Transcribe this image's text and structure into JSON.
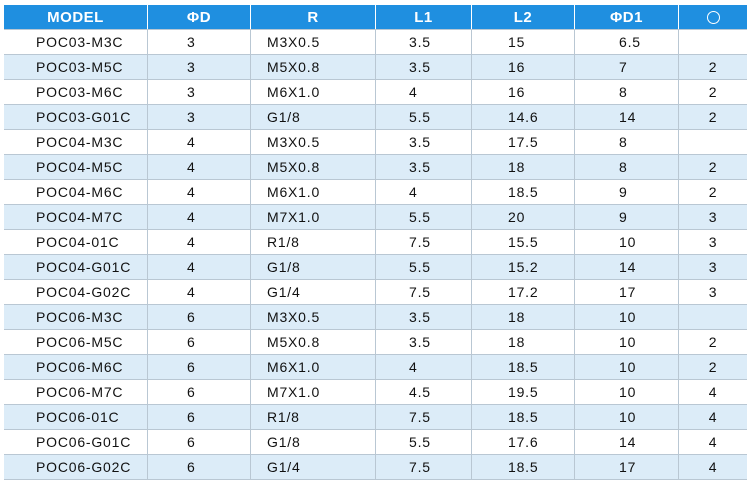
{
  "table": {
    "headers": {
      "model": "MODEL",
      "phi_d": "ΦD",
      "r": "R",
      "l1": "L1",
      "l2": "L2",
      "phi_d1": "ΦD1",
      "o_ring": "circle-icon"
    },
    "colors": {
      "header_bg": "#1f8fe0",
      "alt_row": "#dcecf8",
      "grid": "#b9c7d3"
    },
    "rows": [
      {
        "model": "POC03-M3C",
        "d": "3",
        "r": "M3X0.5",
        "l1": "3.5",
        "l2": "15",
        "d1": "6.5",
        "o": ""
      },
      {
        "model": "POC03-M5C",
        "d": "3",
        "r": "M5X0.8",
        "l1": "3.5",
        "l2": "16",
        "d1": "7",
        "o": "2"
      },
      {
        "model": "POC03-M6C",
        "d": "3",
        "r": "M6X1.0",
        "l1": "4",
        "l2": "16",
        "d1": "8",
        "o": "2"
      },
      {
        "model": "POC03-G01C",
        "d": "3",
        "r": "G1/8",
        "l1": "5.5",
        "l2": "14.6",
        "d1": "14",
        "o": "2"
      },
      {
        "model": "POC04-M3C",
        "d": "4",
        "r": "M3X0.5",
        "l1": "3.5",
        "l2": "17.5",
        "d1": "8",
        "o": ""
      },
      {
        "model": "POC04-M5C",
        "d": "4",
        "r": "M5X0.8",
        "l1": "3.5",
        "l2": "18",
        "d1": "8",
        "o": "2"
      },
      {
        "model": "POC04-M6C",
        "d": "4",
        "r": "M6X1.0",
        "l1": "4",
        "l2": "18.5",
        "d1": "9",
        "o": "2"
      },
      {
        "model": "POC04-M7C",
        "d": "4",
        "r": "M7X1.0",
        "l1": "5.5",
        "l2": "20",
        "d1": "9",
        "o": "3"
      },
      {
        "model": "POC04-01C",
        "d": "4",
        "r": "R1/8",
        "l1": "7.5",
        "l2": "15.5",
        "d1": "10",
        "o": "3"
      },
      {
        "model": "POC04-G01C",
        "d": "4",
        "r": "G1/8",
        "l1": "5.5",
        "l2": "15.2",
        "d1": "14",
        "o": "3"
      },
      {
        "model": "POC04-G02C",
        "d": "4",
        "r": "G1/4",
        "l1": "7.5",
        "l2": "17.2",
        "d1": "17",
        "o": "3"
      },
      {
        "model": "POC06-M3C",
        "d": "6",
        "r": "M3X0.5",
        "l1": "3.5",
        "l2": "18",
        "d1": "10",
        "o": ""
      },
      {
        "model": "POC06-M5C",
        "d": "6",
        "r": "M5X0.8",
        "l1": "3.5",
        "l2": "18",
        "d1": "10",
        "o": "2"
      },
      {
        "model": "POC06-M6C",
        "d": "6",
        "r": "M6X1.0",
        "l1": "4",
        "l2": "18.5",
        "d1": "10",
        "o": "2"
      },
      {
        "model": "POC06-M7C",
        "d": "6",
        "r": "M7X1.0",
        "l1": "4.5",
        "l2": "19.5",
        "d1": "10",
        "o": "4"
      },
      {
        "model": "POC06-01C",
        "d": "6",
        "r": "R1/8",
        "l1": "7.5",
        "l2": "18.5",
        "d1": "10",
        "o": "4"
      },
      {
        "model": "POC06-G01C",
        "d": "6",
        "r": "G1/8",
        "l1": "5.5",
        "l2": "17.6",
        "d1": "14",
        "o": "4"
      },
      {
        "model": "POC06-G02C",
        "d": "6",
        "r": "G1/4",
        "l1": "7.5",
        "l2": "18.5",
        "d1": "17",
        "o": "4"
      }
    ]
  }
}
